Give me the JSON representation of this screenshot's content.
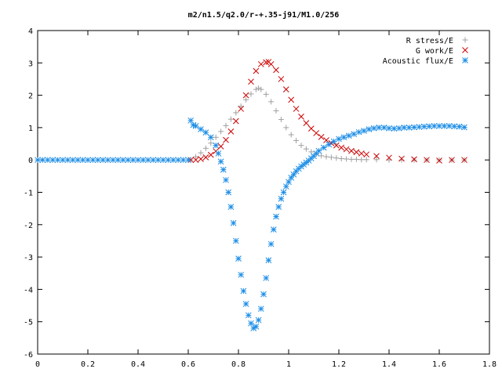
{
  "chart_data": {
    "type": "scatter",
    "title": "m2/n1.5/q2.0/r-+.35-j91/M1.0/256",
    "xlabel": "",
    "ylabel": "",
    "xlim": [
      0,
      1.8
    ],
    "ylim": [
      -6,
      4
    ],
    "x_ticks": [
      "0",
      "0.2",
      "0.4",
      "0.6",
      "0.8",
      "1",
      "1.2",
      "1.4",
      "1.6",
      "1.8"
    ],
    "y_ticks": [
      "4",
      "3",
      "2",
      "1",
      "0",
      "-1",
      "-2",
      "-3",
      "-4",
      "-5",
      "-6"
    ],
    "grid": false,
    "legend_position": "top-right",
    "series": [
      {
        "name": "R stress/E",
        "marker": "plus",
        "color": "#a0a0a0",
        "x": [
          0.61,
          0.63,
          0.65,
          0.67,
          0.69,
          0.71,
          0.73,
          0.75,
          0.77,
          0.79,
          0.81,
          0.83,
          0.85,
          0.87,
          0.88,
          0.89,
          0.91,
          0.93,
          0.95,
          0.97,
          0.99,
          1.01,
          1.03,
          1.05,
          1.07,
          1.09,
          1.11,
          1.13,
          1.15,
          1.17,
          1.19,
          1.21,
          1.23,
          1.25,
          1.27,
          1.29,
          1.31,
          1.35,
          1.4,
          1.45,
          1.5,
          1.55,
          1.6,
          1.65,
          1.7
        ],
        "y": [
          0.0,
          0.1,
          0.22,
          0.36,
          0.52,
          0.7,
          0.88,
          1.06,
          1.26,
          1.46,
          1.66,
          1.86,
          2.04,
          2.18,
          2.22,
          2.18,
          2.03,
          1.8,
          1.52,
          1.25,
          1.0,
          0.78,
          0.6,
          0.45,
          0.34,
          0.25,
          0.18,
          0.13,
          0.1,
          0.08,
          0.06,
          0.04,
          0.03,
          0.02,
          0.02,
          0.01,
          0.01,
          0.01,
          0.0,
          0.0,
          0.0,
          0.0,
          0.0,
          0.0,
          0.0
        ]
      },
      {
        "name": "G work/E",
        "marker": "cross",
        "color": "#cc0000",
        "x": [
          0.61,
          0.63,
          0.65,
          0.67,
          0.69,
          0.71,
          0.73,
          0.75,
          0.77,
          0.79,
          0.81,
          0.83,
          0.85,
          0.87,
          0.89,
          0.91,
          0.92,
          0.93,
          0.95,
          0.97,
          0.99,
          1.01,
          1.03,
          1.05,
          1.07,
          1.09,
          1.11,
          1.13,
          1.15,
          1.17,
          1.19,
          1.21,
          1.23,
          1.25,
          1.27,
          1.29,
          1.31,
          1.35,
          1.4,
          1.45,
          1.5,
          1.55,
          1.6,
          1.65,
          1.7
        ],
        "y": [
          0.0,
          0.0,
          0.03,
          0.08,
          0.16,
          0.27,
          0.42,
          0.62,
          0.88,
          1.2,
          1.58,
          2.0,
          2.42,
          2.75,
          2.96,
          3.02,
          3.03,
          2.96,
          2.78,
          2.5,
          2.18,
          1.86,
          1.58,
          1.34,
          1.14,
          0.97,
          0.83,
          0.71,
          0.61,
          0.52,
          0.45,
          0.38,
          0.33,
          0.28,
          0.24,
          0.2,
          0.17,
          0.12,
          0.07,
          0.04,
          0.02,
          0.0,
          -0.02,
          0.0,
          0.0
        ]
      },
      {
        "name": "Acoustic flux/E",
        "marker": "star",
        "color": "#1e8ee6",
        "x": [
          0.0,
          0.02,
          0.04,
          0.06,
          0.08,
          0.1,
          0.12,
          0.14,
          0.16,
          0.18,
          0.2,
          0.22,
          0.24,
          0.26,
          0.28,
          0.3,
          0.32,
          0.34,
          0.36,
          0.38,
          0.4,
          0.42,
          0.44,
          0.46,
          0.48,
          0.5,
          0.52,
          0.54,
          0.56,
          0.58,
          0.6,
          0.61,
          0.62,
          0.63,
          0.65,
          0.67,
          0.69,
          0.71,
          0.72,
          0.73,
          0.74,
          0.75,
          0.76,
          0.77,
          0.78,
          0.79,
          0.8,
          0.81,
          0.82,
          0.83,
          0.84,
          0.85,
          0.86,
          0.87,
          0.88,
          0.89,
          0.9,
          0.91,
          0.92,
          0.93,
          0.94,
          0.95,
          0.96,
          0.97,
          0.98,
          0.99,
          1.0,
          1.01,
          1.02,
          1.03,
          1.04,
          1.05,
          1.06,
          1.07,
          1.08,
          1.09,
          1.1,
          1.11,
          1.12,
          1.14,
          1.16,
          1.18,
          1.2,
          1.22,
          1.24,
          1.26,
          1.28,
          1.3,
          1.32,
          1.34,
          1.36,
          1.38,
          1.4,
          1.42,
          1.44,
          1.46,
          1.48,
          1.5,
          1.52,
          1.54,
          1.56,
          1.58,
          1.6,
          1.62,
          1.64,
          1.66,
          1.68,
          1.7
        ],
        "y": [
          0.0,
          0.0,
          0.0,
          0.0,
          0.0,
          0.0,
          0.0,
          0.0,
          0.0,
          0.0,
          0.0,
          0.0,
          0.0,
          0.0,
          0.0,
          0.0,
          0.0,
          0.0,
          0.0,
          0.0,
          0.0,
          0.0,
          0.0,
          0.0,
          0.0,
          0.0,
          0.0,
          0.0,
          0.0,
          0.0,
          0.0,
          1.22,
          1.08,
          1.05,
          0.95,
          0.85,
          0.7,
          0.45,
          0.2,
          -0.05,
          -0.3,
          -0.62,
          -1.0,
          -1.45,
          -1.95,
          -2.5,
          -3.05,
          -3.55,
          -4.05,
          -4.45,
          -4.8,
          -5.05,
          -5.2,
          -5.15,
          -4.95,
          -4.6,
          -4.15,
          -3.65,
          -3.1,
          -2.6,
          -2.15,
          -1.75,
          -1.45,
          -1.2,
          -1.0,
          -0.82,
          -0.68,
          -0.55,
          -0.45,
          -0.35,
          -0.27,
          -0.2,
          -0.14,
          -0.08,
          -0.02,
          0.05,
          0.12,
          0.2,
          0.28,
          0.38,
          0.48,
          0.57,
          0.65,
          0.7,
          0.75,
          0.8,
          0.86,
          0.9,
          0.95,
          0.98,
          1.0,
          1.0,
          0.98,
          0.97,
          0.98,
          1.0,
          1.0,
          1.01,
          1.02,
          1.03,
          1.04,
          1.05,
          1.05,
          1.05,
          1.05,
          1.04,
          1.03,
          1.01
        ]
      }
    ]
  }
}
